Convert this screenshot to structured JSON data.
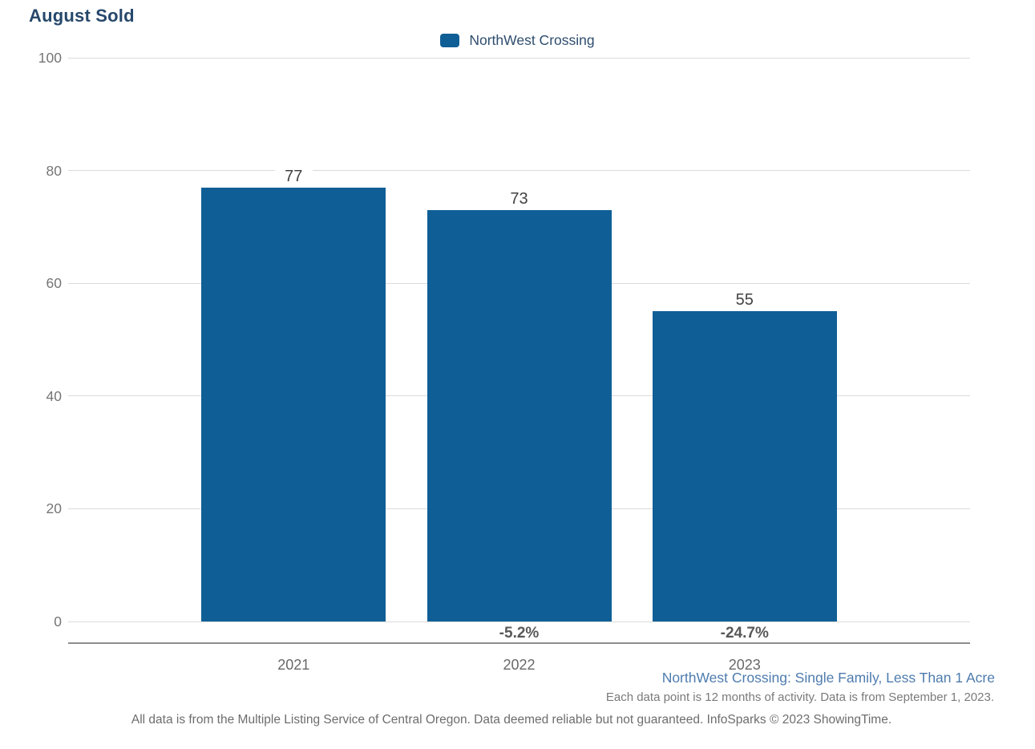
{
  "header": {
    "title": "August Sold"
  },
  "legend": {
    "label": "NorthWest Crossing",
    "position": "top-center"
  },
  "chart_data": {
    "type": "bar",
    "title": "August Sold",
    "categories": [
      "2021",
      "2022",
      "2023"
    ],
    "series": [
      {
        "name": "NorthWest Crossing",
        "values": [
          77,
          73,
          55
        ]
      }
    ],
    "bar_value_labels": [
      "77",
      "73",
      "55"
    ],
    "pct_change_labels": [
      null,
      "-5.2%",
      "-24.7%"
    ],
    "ylim": [
      0,
      100
    ],
    "yticks": [
      0,
      20,
      40,
      60,
      80,
      100
    ],
    "grid": "horizontal",
    "legend_position": "top-center",
    "bar_color": "#0f5f96"
  },
  "colors": {
    "bar": "#0f5f96",
    "title": "#26486b",
    "legend_text": "#2e4d6e",
    "footer_link": "#4e7cae",
    "gridline": "#dbdbdb",
    "axis_line": "#8d8d8d"
  },
  "footer": {
    "series_description": "NorthWest Crossing: Single Family, Less Than 1 Acre",
    "data_note": "Each data point is 12 months of activity. Data is from September 1, 2023.",
    "disclaimer": "All data is from the Multiple Listing Service of Central Oregon. Data deemed reliable but not guaranteed. InfoSparks © 2023 ShowingTime."
  }
}
